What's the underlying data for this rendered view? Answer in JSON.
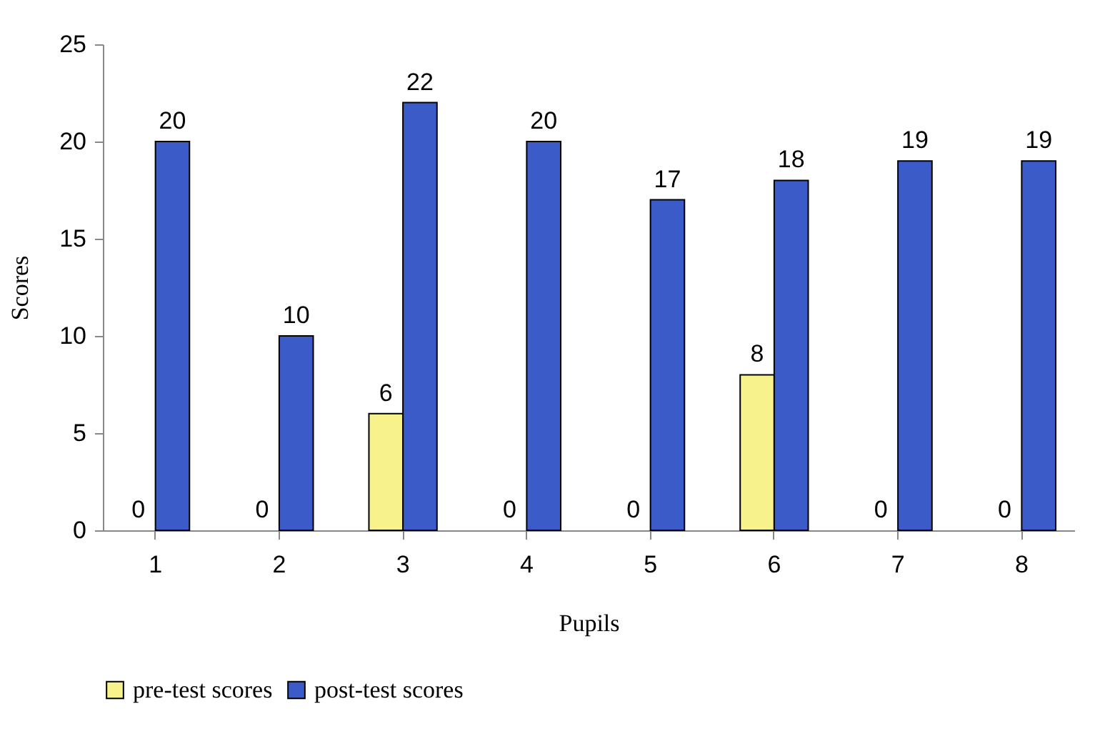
{
  "chart_data": {
    "type": "bar",
    "xlabel": "Pupils",
    "ylabel": "Scores",
    "categories": [
      "1",
      "2",
      "3",
      "4",
      "5",
      "6",
      "7",
      "8"
    ],
    "series": [
      {
        "name": "pre-test scores",
        "color": "#f7f28c",
        "values": [
          0,
          0,
          6,
          0,
          0,
          8,
          0,
          0
        ]
      },
      {
        "name": "post-test scores",
        "color": "#3a5bc8",
        "values": [
          20,
          10,
          22,
          20,
          17,
          18,
          19,
          19
        ]
      }
    ],
    "ylim": [
      0,
      25
    ],
    "yticks": [
      0,
      5,
      10,
      15,
      20,
      25
    ],
    "grid": false,
    "legend": "bottom",
    "data_labels": true
  }
}
